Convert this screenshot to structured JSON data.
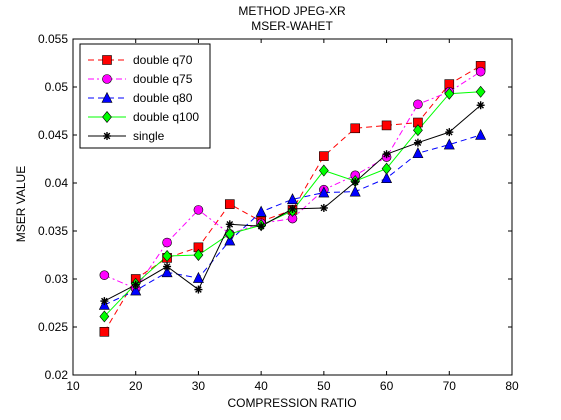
{
  "chart_data": {
    "type": "line",
    "title": "METHOD JPEG-XR",
    "subtitle": "MSER-WAHET",
    "xlabel": "COMPRESSION RATIO",
    "ylabel": "MSER VALUE",
    "xlim": [
      10,
      80
    ],
    "ylim": [
      0.02,
      0.055
    ],
    "xticks": [
      "10",
      "20",
      "30",
      "40",
      "50",
      "60",
      "70",
      "80"
    ],
    "yticks": [
      "0.02",
      "0.025",
      "0.03",
      "0.035",
      "0.04",
      "0.045",
      "0.05",
      "0.055"
    ],
    "grid": false,
    "legend_position": "top-left",
    "x": [
      15,
      20,
      25,
      30,
      35,
      40,
      45,
      50,
      55,
      60,
      65,
      70,
      75
    ],
    "series": [
      {
        "name": "double q70",
        "color": "#ff0000",
        "dash": "dashed",
        "marker": "square",
        "values": [
          0.0245,
          0.03,
          0.0322,
          0.0333,
          0.0378,
          0.036,
          0.0372,
          0.0428,
          0.0457,
          0.046,
          0.0463,
          0.0503,
          0.0522
        ]
      },
      {
        "name": "double q75",
        "color": "#ff00ff",
        "dash": "dashdot",
        "marker": "circle",
        "values": [
          0.0304,
          0.029,
          0.0338,
          0.0372,
          0.0347,
          0.0358,
          0.0363,
          0.0393,
          0.0408,
          0.0427,
          0.0482,
          0.0495,
          0.0516
        ]
      },
      {
        "name": "double q80",
        "color": "#0000ff",
        "dash": "dashed",
        "marker": "triangle",
        "values": [
          0.0273,
          0.0288,
          0.0307,
          0.0301,
          0.034,
          0.037,
          0.0383,
          0.039,
          0.0391,
          0.0405,
          0.0431,
          0.044,
          0.045
        ]
      },
      {
        "name": "double q100",
        "color": "#00ff00",
        "dash": "solid",
        "marker": "diamond",
        "values": [
          0.0261,
          0.0295,
          0.0324,
          0.0325,
          0.0347,
          0.0356,
          0.0371,
          0.0413,
          0.0402,
          0.0415,
          0.0455,
          0.0493,
          0.0495
        ]
      },
      {
        "name": "single",
        "color": "#000000",
        "dash": "solid",
        "marker": "star",
        "values": [
          0.0277,
          0.0294,
          0.0313,
          0.0289,
          0.0357,
          0.0355,
          0.0373,
          0.0374,
          0.0401,
          0.043,
          0.0442,
          0.0453,
          0.0481
        ]
      }
    ]
  }
}
